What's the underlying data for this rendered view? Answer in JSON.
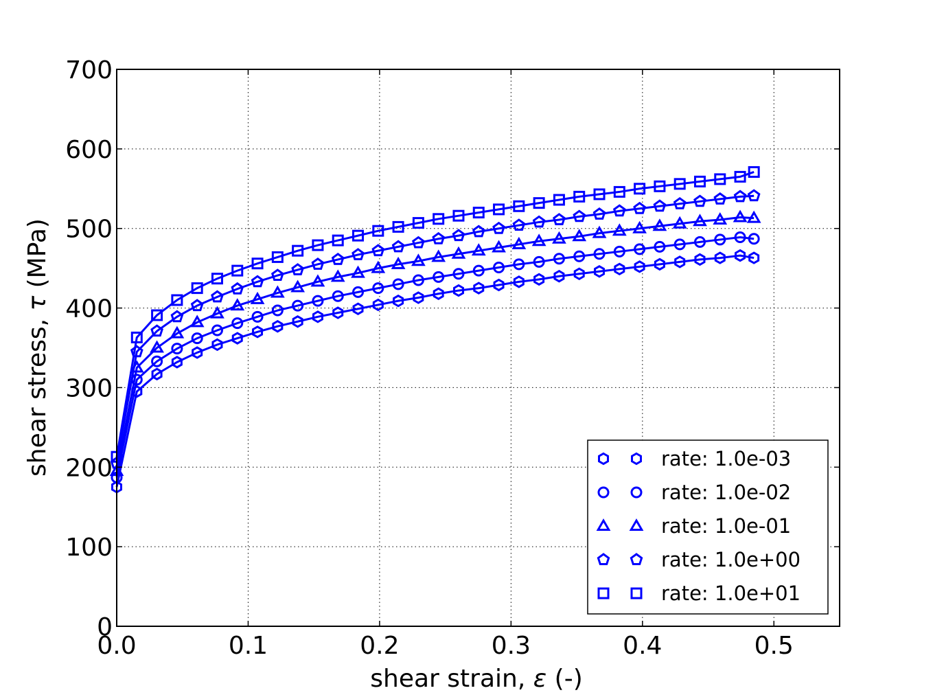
{
  "chart_data": {
    "type": "line",
    "title": "",
    "xlabel_text": "shear strain,",
    "xlabel_symbol": "ε",
    "xlabel_unit": "(-)",
    "ylabel_text": "shear stress,",
    "ylabel_symbol": "τ",
    "ylabel_unit": "(MPa)",
    "xlim": [
      0.0,
      0.55
    ],
    "ylim": [
      0,
      700
    ],
    "xticks": [
      "0.0",
      "0.1",
      "0.2",
      "0.3",
      "0.4",
      "0.5"
    ],
    "xtick_values": [
      0.0,
      0.1,
      0.2,
      0.3,
      0.4,
      0.5
    ],
    "yticks": [
      "0",
      "100",
      "200",
      "300",
      "400",
      "500",
      "600",
      "700"
    ],
    "ytick_values": [
      0,
      100,
      200,
      300,
      400,
      500,
      600,
      700
    ],
    "grid": true,
    "legend_position": "lower-right",
    "color": "#0000ff",
    "x": [
      0.0,
      0.0153,
      0.0306,
      0.0459,
      0.0612,
      0.0765,
      0.0918,
      0.1071,
      0.1224,
      0.1377,
      0.153,
      0.1683,
      0.1836,
      0.1989,
      0.2142,
      0.2295,
      0.2448,
      0.2601,
      0.2754,
      0.2907,
      0.306,
      0.3213,
      0.3366,
      0.3519,
      0.3672,
      0.3825,
      0.3978,
      0.4131,
      0.4284,
      0.4437,
      0.459,
      0.4743,
      0.4848
    ],
    "series": [
      {
        "name": "rate: 1.0e-03",
        "marker": "hexagon",
        "values": [
          175,
          295,
          317,
          332,
          344,
          354,
          362,
          370,
          377,
          383,
          389,
          394,
          399,
          404,
          409,
          413,
          418,
          422,
          425,
          429,
          433,
          436,
          440,
          443,
          446,
          449,
          452,
          455,
          458,
          461,
          463,
          466,
          463
        ]
      },
      {
        "name": "rate: 1.0e-02",
        "marker": "circle",
        "values": [
          187,
          310,
          333,
          349,
          362,
          372,
          381,
          389,
          397,
          403,
          409,
          415,
          420,
          425,
          430,
          435,
          439,
          443,
          447,
          451,
          455,
          458,
          462,
          465,
          468,
          471,
          474,
          477,
          480,
          483,
          486,
          489,
          487
        ]
      },
      {
        "name": "rate: 1.0e-01",
        "marker": "triangle",
        "values": [
          195,
          325,
          350,
          368,
          382,
          393,
          403,
          411,
          419,
          426,
          433,
          439,
          444,
          450,
          455,
          459,
          464,
          468,
          472,
          476,
          480,
          484,
          487,
          490,
          494,
          497,
          500,
          503,
          506,
          509,
          511,
          514,
          513
        ]
      },
      {
        "name": "rate: 1.0e+00",
        "marker": "pentagon",
        "values": [
          205,
          345,
          371,
          389,
          403,
          414,
          424,
          433,
          441,
          448,
          455,
          461,
          467,
          472,
          477,
          482,
          487,
          491,
          496,
          500,
          504,
          508,
          511,
          515,
          518,
          522,
          525,
          528,
          531,
          534,
          537,
          540,
          541
        ]
      },
      {
        "name": "rate: 1.0e+01",
        "marker": "square",
        "values": [
          213,
          363,
          391,
          410,
          425,
          437,
          447,
          456,
          464,
          472,
          479,
          485,
          491,
          497,
          502,
          507,
          512,
          516,
          520,
          524,
          528,
          532,
          536,
          540,
          543,
          546,
          550,
          553,
          556,
          559,
          562,
          565,
          571
        ]
      }
    ]
  }
}
